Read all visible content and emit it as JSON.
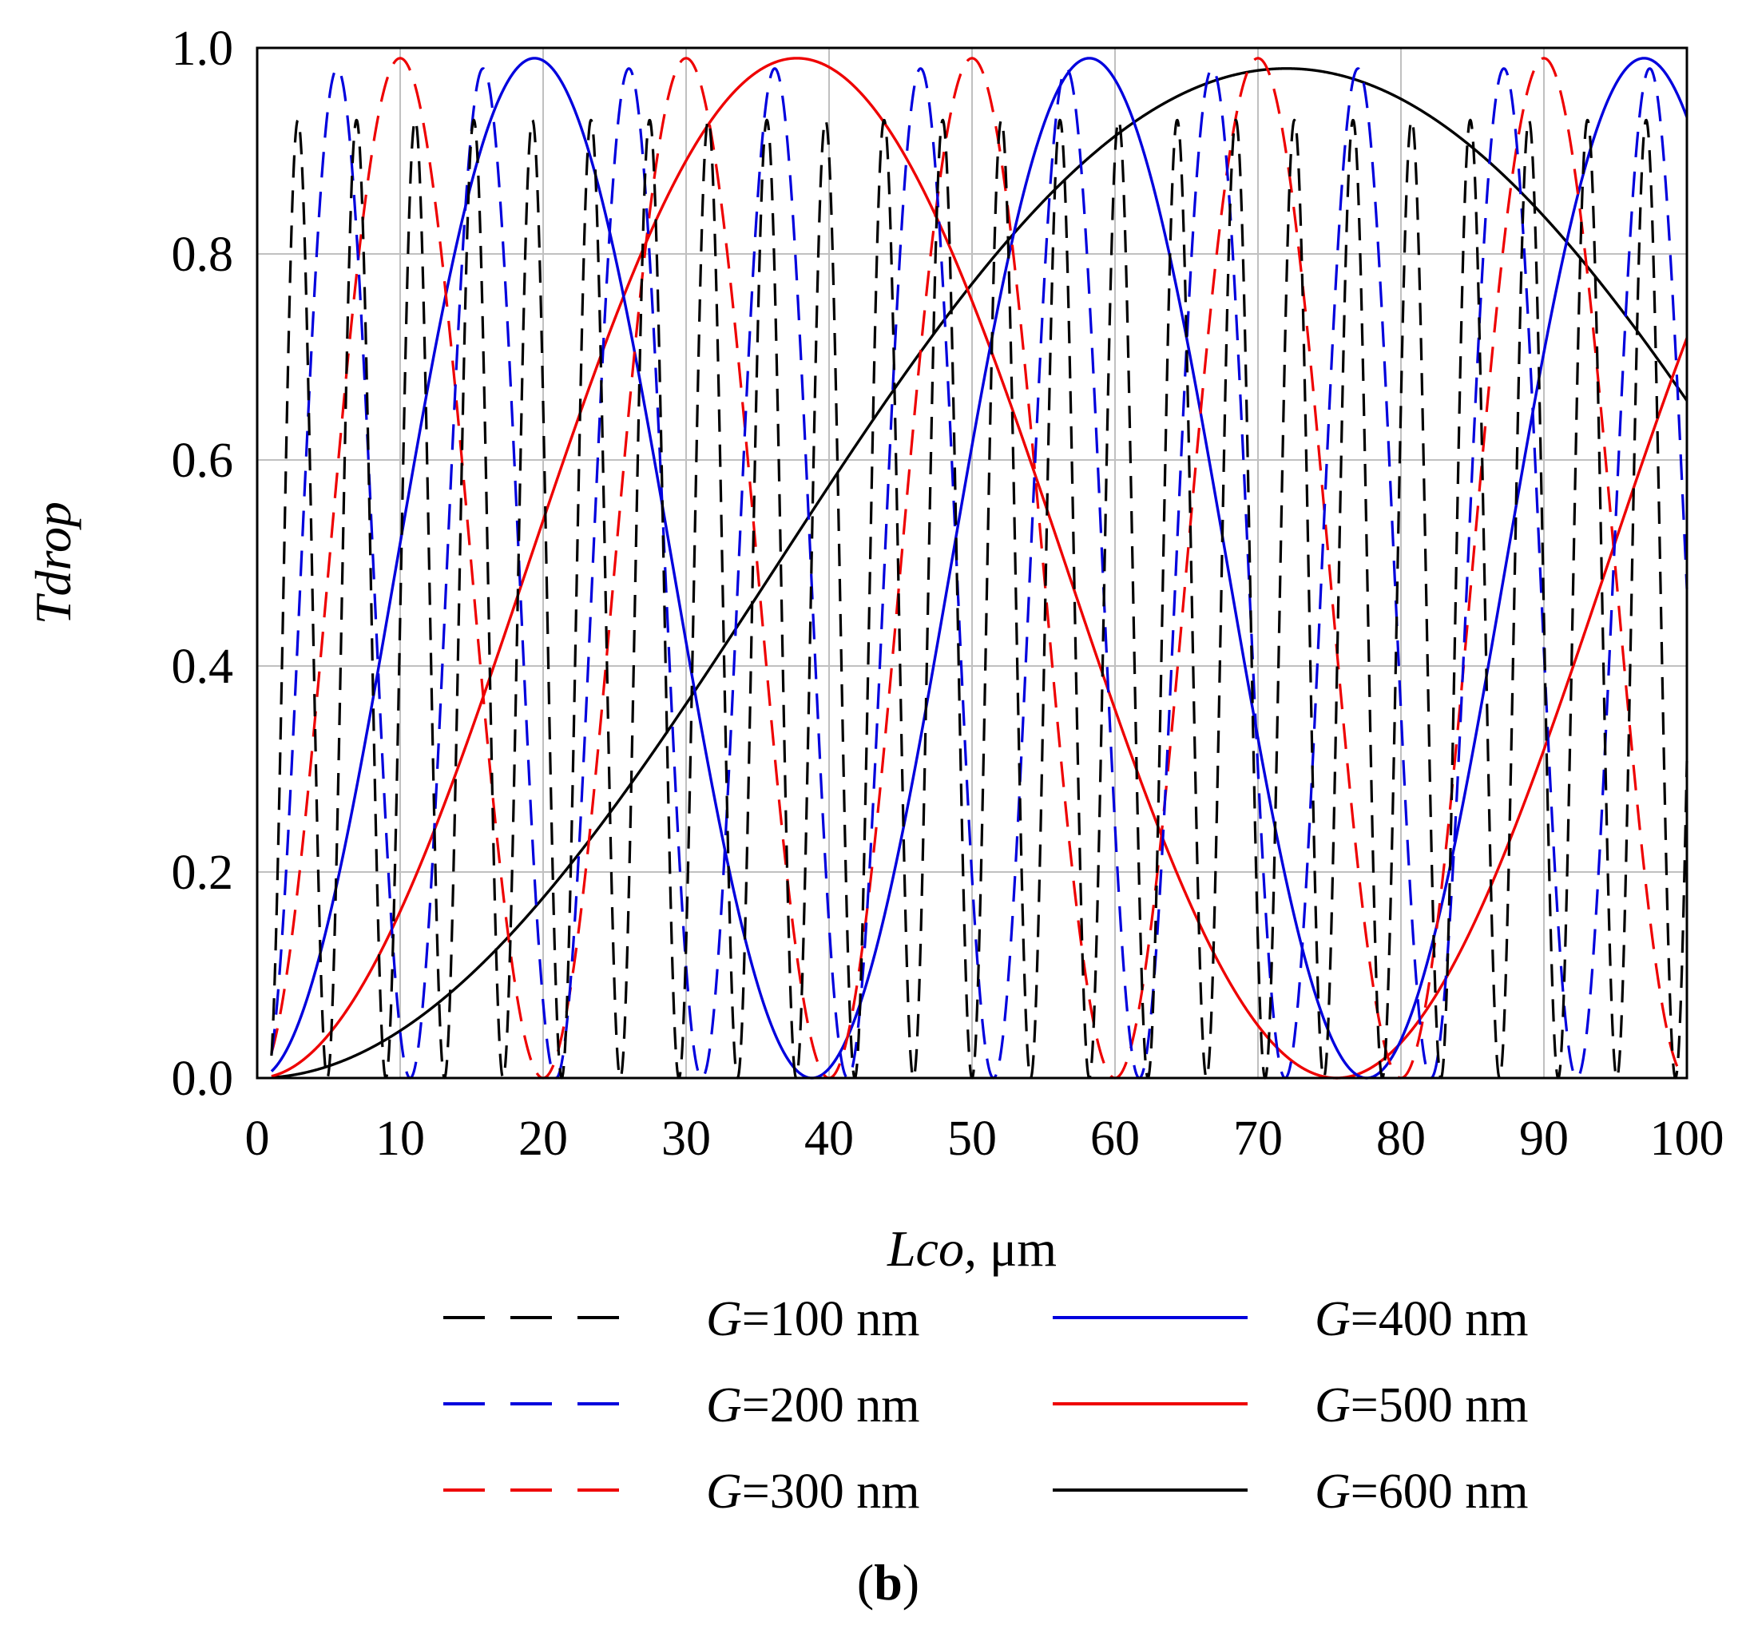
{
  "chart_data": {
    "type": "line",
    "title": "",
    "panel_label": {
      "open": "(",
      "letter": "b",
      "close": ")"
    },
    "xlabel": {
      "italic": "Lco,",
      "unit": " μm"
    },
    "ylabel": "Tdrop",
    "xlim": [
      0,
      100
    ],
    "ylim": [
      0,
      1
    ],
    "xticks": [
      0,
      10,
      20,
      30,
      40,
      50,
      60,
      70,
      80,
      90,
      100
    ],
    "yticks": [
      0.0,
      0.2,
      0.4,
      0.6,
      0.8,
      1.0
    ],
    "ytick_labels": [
      "0.0",
      "0.2",
      "0.4",
      "0.6",
      "0.8",
      "1.0"
    ],
    "grid": true,
    "legend_position": "bottom",
    "series": [
      {
        "name_prefix": "G",
        "name_value": "=100 nm",
        "color": "#000000",
        "style": "dashed",
        "peak": 0.93,
        "period": 4.1,
        "phase": 0.8,
        "x_start": 1,
        "x_end": 100
      },
      {
        "name_prefix": "G",
        "name_value": "=200 nm",
        "color": "#0000dd",
        "style": "dashed",
        "peak": 0.98,
        "period": 10.2,
        "phase": 0.5,
        "x_start": 1,
        "x_end": 100
      },
      {
        "name_prefix": "G",
        "name_value": "=300 nm",
        "color": "#ee0000",
        "style": "dashed",
        "peak": 0.99,
        "period": 20.0,
        "phase": 0.0,
        "x_start": 1,
        "x_end": 100
      },
      {
        "name_prefix": "G",
        "name_value": "=400 nm",
        "color": "#0000dd",
        "style": "solid",
        "peak": 0.99,
        "period": 38.8,
        "phase": 0.0,
        "x_start": 1,
        "x_end": 100
      },
      {
        "name_prefix": "G",
        "name_value": "=500 nm",
        "color": "#ee0000",
        "style": "solid",
        "peak": 0.99,
        "period": 75.5,
        "phase": 0.0,
        "x_start": 1,
        "x_end": 100
      },
      {
        "name_prefix": "G",
        "name_value": "=600 nm",
        "color": "#000000",
        "style": "solid",
        "peak": 0.98,
        "period": 144.0,
        "phase": 0.0,
        "x_start": 1,
        "x_end": 100
      }
    ]
  }
}
